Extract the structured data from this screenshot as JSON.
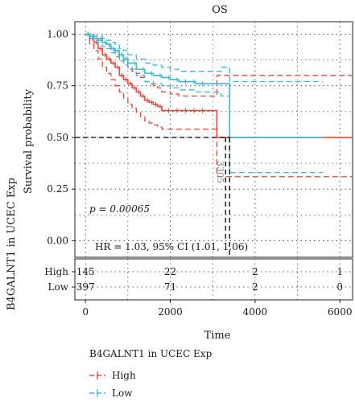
{
  "chart_data": {
    "type": "line",
    "title": "OS",
    "xlabel": "Time",
    "ylabel": "Survival probability",
    "xlim": [
      -250,
      6300
    ],
    "ylim": [
      -0.08,
      1.06
    ],
    "x_ticks": [
      "0",
      "2000",
      "4000",
      "6000"
    ],
    "y_ticks": [
      "0.00",
      "0.25",
      "0.50",
      "0.75",
      "1.00"
    ],
    "x_tick_values": [
      0,
      2000,
      4000,
      6000
    ],
    "y_tick_values": [
      0.0,
      0.25,
      0.5,
      0.75,
      1.0
    ],
    "grid": "dotted",
    "pvalue_text": "p = 0.00065",
    "hr_text": "HR = 1.03, 95% CI (1.01, 1.06)",
    "median_label": "3305",
    "median_time": 3305,
    "median_low_time": 3400,
    "risk_table": {
      "ylabel": "B4GALNT1 in UCEC Exp",
      "rows": [
        {
          "label": "High",
          "counts": [
            "145",
            "22",
            "2",
            "1"
          ],
          "color": "#e8483a"
        },
        {
          "label": "Low",
          "counts": [
            "397",
            "71",
            "2",
            "0"
          ],
          "color": "#3ab8d6"
        }
      ]
    },
    "legend": {
      "title": "B4GALNT1 in UCEC Exp",
      "position": "bottom-left",
      "entries": [
        {
          "label": "High",
          "color": "#e8483a"
        },
        {
          "label": "Low",
          "color": "#3ab8d6"
        }
      ]
    },
    "series": [
      {
        "name": "High",
        "color": "#e8483a",
        "x": [
          0,
          100,
          200,
          300,
          400,
          500,
          600,
          700,
          800,
          900,
          1000,
          1100,
          1200,
          1300,
          1400,
          1500,
          1600,
          1700,
          1800,
          2000,
          2200,
          2400,
          2600,
          2800,
          3000,
          3100,
          3305,
          3500,
          4000,
          5000,
          6300
        ],
        "y": [
          1.0,
          0.98,
          0.96,
          0.93,
          0.9,
          0.88,
          0.86,
          0.84,
          0.8,
          0.78,
          0.76,
          0.74,
          0.72,
          0.7,
          0.68,
          0.67,
          0.66,
          0.65,
          0.63,
          0.63,
          0.63,
          0.63,
          0.63,
          0.63,
          0.63,
          0.5,
          0.5,
          0.5,
          0.5,
          0.5,
          0.5
        ],
        "upper": [
          1.0,
          1.0,
          0.99,
          0.98,
          0.96,
          0.94,
          0.92,
          0.9,
          0.88,
          0.86,
          0.84,
          0.82,
          0.81,
          0.79,
          0.77,
          0.76,
          0.75,
          0.74,
          0.72,
          0.71,
          0.7,
          0.7,
          0.7,
          0.7,
          0.7,
          0.8,
          0.8,
          0.8,
          0.8,
          0.8,
          0.8
        ],
        "lower": [
          1.0,
          0.95,
          0.92,
          0.88,
          0.84,
          0.81,
          0.78,
          0.75,
          0.72,
          0.69,
          0.66,
          0.64,
          0.62,
          0.6,
          0.58,
          0.57,
          0.56,
          0.55,
          0.54,
          0.54,
          0.54,
          0.54,
          0.54,
          0.54,
          0.54,
          0.31,
          0.31,
          0.31,
          0.31,
          0.31,
          0.31
        ]
      },
      {
        "name": "Low",
        "color": "#3ab8d6",
        "x": [
          0,
          100,
          200,
          300,
          400,
          500,
          600,
          700,
          800,
          900,
          1000,
          1200,
          1400,
          1600,
          1800,
          2000,
          2200,
          2400,
          2600,
          2800,
          3000,
          3200,
          3400,
          3500,
          4000,
          4500,
          5000,
          5600
        ],
        "y": [
          1.0,
          0.99,
          0.98,
          0.97,
          0.96,
          0.95,
          0.93,
          0.92,
          0.9,
          0.88,
          0.86,
          0.83,
          0.81,
          0.8,
          0.79,
          0.78,
          0.77,
          0.77,
          0.76,
          0.76,
          0.76,
          0.76,
          0.5,
          0.5,
          0.5,
          0.5,
          0.5,
          0.5
        ],
        "upper": [
          1.0,
          1.0,
          0.99,
          0.99,
          0.98,
          0.97,
          0.96,
          0.95,
          0.93,
          0.92,
          0.9,
          0.88,
          0.86,
          0.85,
          0.84,
          0.83,
          0.82,
          0.82,
          0.82,
          0.82,
          0.82,
          0.84,
          0.77,
          0.77,
          0.77,
          0.77,
          0.77,
          0.77
        ],
        "lower": [
          1.0,
          0.98,
          0.97,
          0.95,
          0.94,
          0.93,
          0.91,
          0.89,
          0.87,
          0.85,
          0.83,
          0.8,
          0.77,
          0.76,
          0.75,
          0.74,
          0.73,
          0.73,
          0.72,
          0.72,
          0.72,
          0.7,
          0.33,
          0.33,
          0.33,
          0.33,
          0.33,
          0.33
        ]
      }
    ]
  }
}
